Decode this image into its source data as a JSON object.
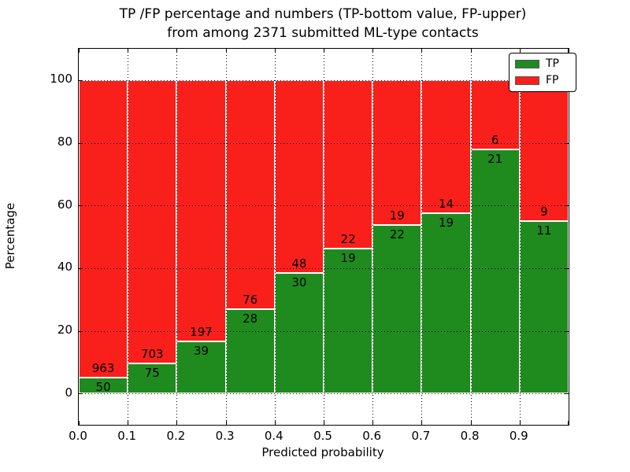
{
  "title": {
    "line1": "TP /FP percentage and numbers (TP-bottom value, FP-upper)",
    "line2": "from among 2371 submitted ML-type contacts"
  },
  "axes": {
    "xlabel": "Predicted probability",
    "ylabel": "Percentage"
  },
  "legend": {
    "items": [
      {
        "label": "TP",
        "color": "#1f8b1f"
      },
      {
        "label": "FP",
        "color": "#f9201c"
      }
    ]
  },
  "chart_data": {
    "type": "bar",
    "stacked": true,
    "normalized": "each bar scaled to 100%",
    "title": "TP /FP percentage and numbers (TP-bottom value, FP-upper)\nfrom among 2371 submitted ML-type contacts",
    "xlabel": "Predicted probability",
    "ylabel": "Percentage",
    "total_contacts": 2371,
    "bin_starts": [
      0.0,
      0.1,
      0.2,
      0.3,
      0.4,
      0.5,
      0.6,
      0.7,
      0.8,
      0.9
    ],
    "bin_width": 0.1,
    "series": [
      {
        "name": "TP",
        "color": "#1f8b1f",
        "counts": [
          50,
          75,
          39,
          28,
          30,
          19,
          22,
          19,
          21,
          11
        ]
      },
      {
        "name": "FP",
        "color": "#f9201c",
        "counts": [
          963,
          703,
          197,
          76,
          48,
          22,
          19,
          14,
          6,
          9
        ]
      }
    ],
    "tp_percent": [
      4.94,
      9.64,
      16.53,
      26.92,
      38.46,
      46.34,
      53.66,
      57.58,
      77.78,
      55.0
    ],
    "xticks": [
      "0.0",
      "0.1",
      "0.2",
      "0.3",
      "0.4",
      "0.5",
      "0.6",
      "0.7",
      "0.8",
      "0.9"
    ],
    "yticks": [
      0,
      20,
      40,
      60,
      80,
      100
    ],
    "xlim": [
      0.0,
      1.0
    ],
    "ylim": [
      -10,
      110
    ],
    "grid": true,
    "grid_style": "dotted",
    "legend_position": "upper right",
    "bar_edge_color": "#ffffff"
  }
}
